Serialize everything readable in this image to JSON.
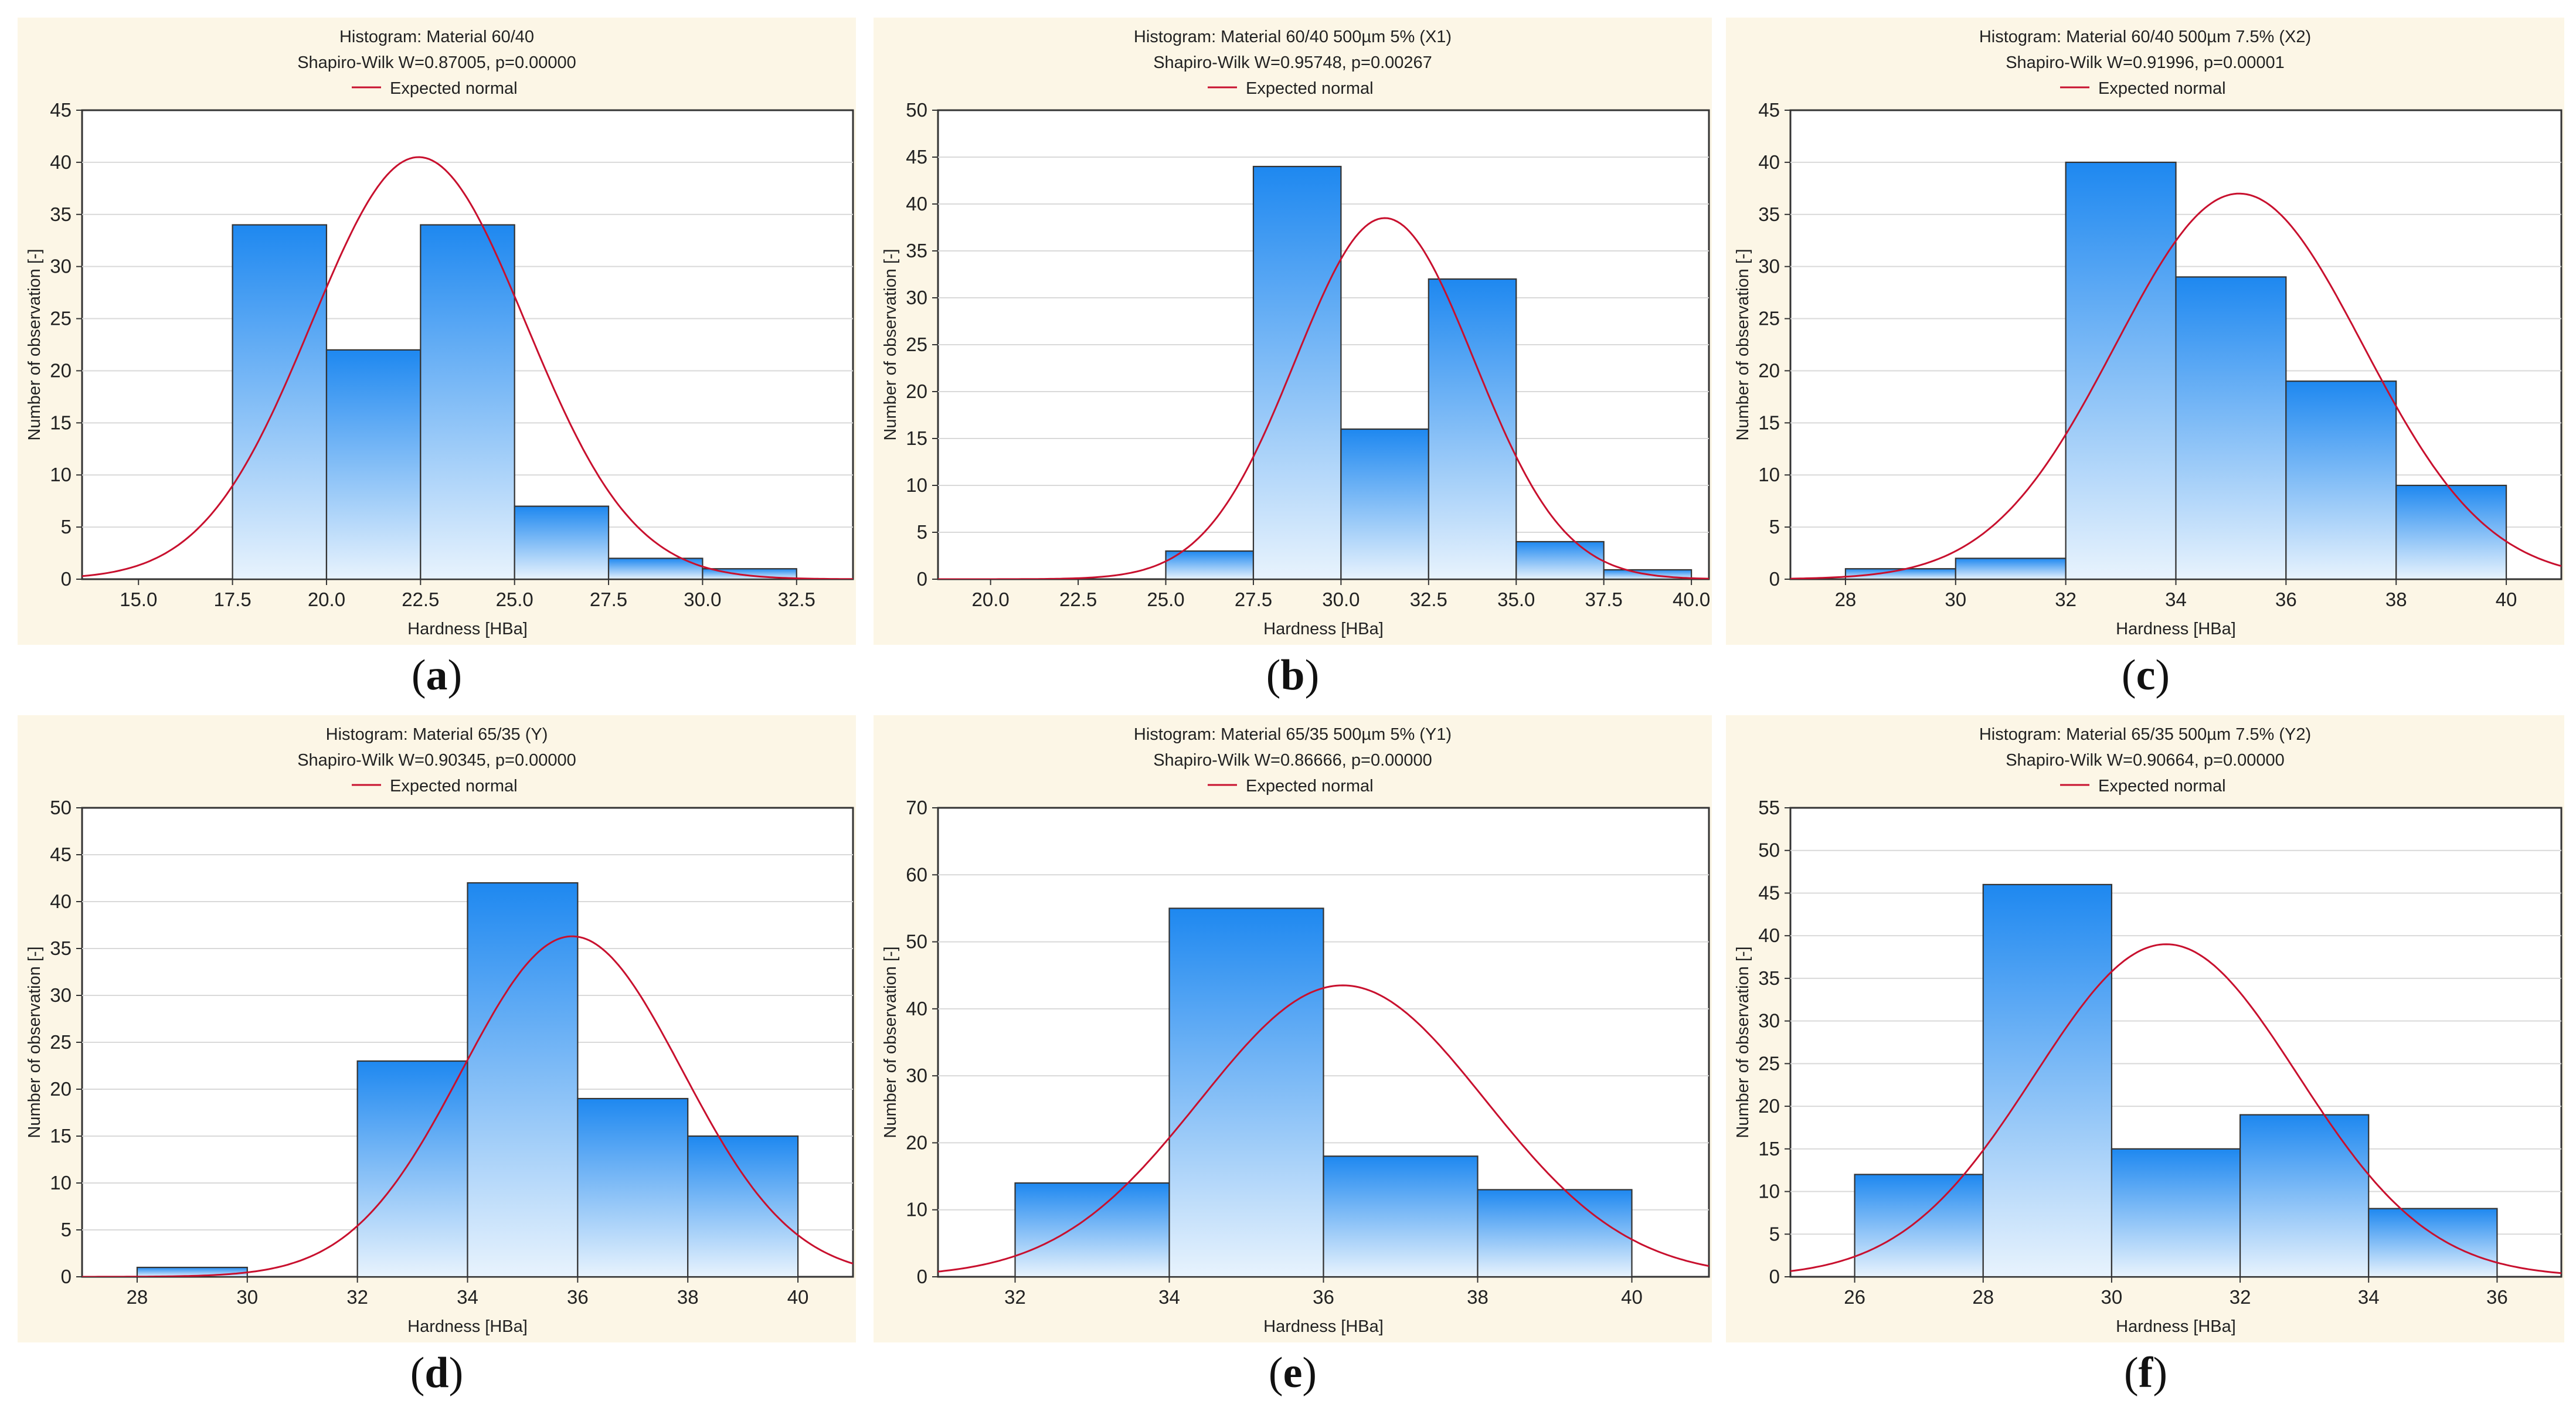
{
  "colors": {
    "bar_top": "#1e88f0",
    "bar_bottom": "#e8f3fd",
    "curve": "#c8102e",
    "panel_bg": "#fcf6e6"
  },
  "captions": [
    "a",
    "b",
    "c",
    "d",
    "e",
    "f"
  ],
  "chart_data": [
    {
      "type": "bar",
      "title": "Histogram: Material 60/40",
      "subtitle": "Shapiro-Wilk W=0.87005, p=0.00000",
      "legend": "Expected normal",
      "xlabel": "Hardness [HBa]",
      "ylabel": "Number of observation [-]",
      "xlim": [
        13.5,
        34.0
      ],
      "ylim": [
        0,
        45
      ],
      "xticks": [
        "15.0",
        "17.5",
        "20.0",
        "22.5",
        "25.0",
        "27.5",
        "30.0",
        "32.5"
      ],
      "yticks": [
        "0",
        "5",
        "10",
        "15",
        "20",
        "25",
        "30",
        "35",
        "40",
        "45"
      ],
      "bins": [
        [
          15.0,
          17.5
        ],
        [
          17.5,
          20.0
        ],
        [
          20.0,
          22.5
        ],
        [
          22.5,
          25.0
        ],
        [
          25.0,
          27.5
        ],
        [
          27.5,
          30.0
        ],
        [
          30.0,
          32.5
        ]
      ],
      "values": [
        0,
        34,
        22,
        34,
        7,
        2,
        1
      ],
      "normal": {
        "mean": 22.45,
        "sd": 2.85,
        "peak": 40.5
      }
    },
    {
      "type": "bar",
      "title": "Histogram: Material 60/40 500µm 5% (X1)",
      "subtitle": "Shapiro-Wilk W=0.95748, p=0.00267",
      "legend": "Expected normal",
      "xlabel": "Hardness [HBa]",
      "ylabel": "Number of observation [-]",
      "xlim": [
        18.5,
        40.5
      ],
      "ylim": [
        0,
        50
      ],
      "xticks": [
        "20.0",
        "22.5",
        "25.0",
        "27.5",
        "30.0",
        "32.5",
        "35.0",
        "37.5",
        "40.0"
      ],
      "yticks": [
        "0",
        "5",
        "10",
        "15",
        "20",
        "25",
        "30",
        "35",
        "40",
        "45",
        "50"
      ],
      "bins": [
        [
          20.0,
          22.5
        ],
        [
          22.5,
          25.0
        ],
        [
          25.0,
          27.5
        ],
        [
          27.5,
          30.0
        ],
        [
          30.0,
          32.5
        ],
        [
          32.5,
          35.0
        ],
        [
          35.0,
          37.5
        ],
        [
          37.5,
          40.0
        ]
      ],
      "values": [
        0,
        0,
        3,
        44,
        16,
        32,
        4,
        1
      ],
      "normal": {
        "mean": 31.25,
        "sd": 2.55,
        "peak": 38.5
      }
    },
    {
      "type": "bar",
      "title": "Histogram: Material 60/40 500µm 7.5% (X2)",
      "subtitle": "Shapiro-Wilk W=0.91996, p=0.00001",
      "legend": "Expected normal",
      "xlabel": "Hardness [HBa]",
      "ylabel": "Number of observation [-]",
      "xlim": [
        27.0,
        41.0
      ],
      "ylim": [
        0,
        45
      ],
      "xticks": [
        "28",
        "30",
        "32",
        "34",
        "36",
        "38",
        "40"
      ],
      "yticks": [
        "0",
        "5",
        "10",
        "15",
        "20",
        "25",
        "30",
        "35",
        "40",
        "45"
      ],
      "bins": [
        [
          28,
          30
        ],
        [
          30,
          32
        ],
        [
          32,
          34
        ],
        [
          34,
          36
        ],
        [
          36,
          38
        ],
        [
          38,
          40
        ]
      ],
      "values": [
        1,
        2,
        40,
        29,
        19,
        9
      ],
      "normal": {
        "mean": 35.15,
        "sd": 2.25,
        "peak": 37.0
      }
    },
    {
      "type": "bar",
      "title": "Histogram: Material 65/35 (Y)",
      "subtitle": "Shapiro-Wilk W=0.90345, p=0.00000",
      "legend": "Expected normal",
      "xlabel": "Hardness [HBa]",
      "ylabel": "Number of observation [-]",
      "xlim": [
        27.0,
        41.0
      ],
      "ylim": [
        0,
        50
      ],
      "xticks": [
        "28",
        "30",
        "32",
        "34",
        "36",
        "38",
        "40"
      ],
      "yticks": [
        "0",
        "5",
        "10",
        "15",
        "20",
        "25",
        "30",
        "35",
        "40",
        "45",
        "50"
      ],
      "bins": [
        [
          28,
          30
        ],
        [
          30,
          32
        ],
        [
          32,
          34
        ],
        [
          34,
          36
        ],
        [
          36,
          38
        ],
        [
          38,
          40
        ]
      ],
      "values": [
        1,
        0,
        23,
        42,
        19,
        15
      ],
      "normal": {
        "mean": 35.9,
        "sd": 2.0,
        "peak": 36.3
      }
    },
    {
      "type": "bar",
      "title": "Histogram: Material 65/35 500µm 5% (Y1)",
      "subtitle": "Shapiro-Wilk W=0.86666, p=0.00000",
      "legend": "Expected normal",
      "xlabel": "Hardness [HBa]",
      "ylabel": "Number of observation [-]",
      "xlim": [
        31.0,
        41.0
      ],
      "ylim": [
        0,
        70
      ],
      "xticks": [
        "32",
        "34",
        "36",
        "38",
        "40"
      ],
      "yticks": [
        "0",
        "10",
        "20",
        "30",
        "40",
        "50",
        "60",
        "70"
      ],
      "bins": [
        [
          32,
          34
        ],
        [
          34,
          36
        ],
        [
          36,
          38
        ],
        [
          38,
          40
        ]
      ],
      "values": [
        14,
        55,
        18,
        13
      ],
      "normal": {
        "mean": 36.25,
        "sd": 1.85,
        "peak": 43.5
      }
    },
    {
      "type": "bar",
      "title": "Histogram: Material 65/35 500µm  7.5% (Y2)",
      "subtitle": "Shapiro-Wilk W=0.90664, p=0.00000",
      "legend": "Expected normal",
      "xlabel": "Hardness [HBa]",
      "ylabel": "Number of observation [-]",
      "xlim": [
        25.0,
        37.0
      ],
      "ylim": [
        0,
        55
      ],
      "xticks": [
        "26",
        "28",
        "30",
        "32",
        "34",
        "36"
      ],
      "yticks": [
        "0",
        "5",
        "10",
        "15",
        "20",
        "25",
        "30",
        "35",
        "40",
        "45",
        "50",
        "55"
      ],
      "bins": [
        [
          26,
          28
        ],
        [
          28,
          30
        ],
        [
          30,
          32
        ],
        [
          32,
          34
        ],
        [
          34,
          36
        ]
      ],
      "values": [
        12,
        46,
        15,
        19,
        8
      ],
      "normal": {
        "mean": 30.85,
        "sd": 2.05,
        "peak": 39.0
      }
    }
  ]
}
